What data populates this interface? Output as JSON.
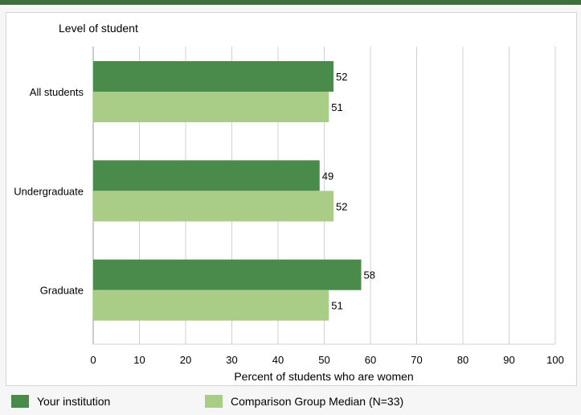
{
  "chart_data": {
    "type": "bar",
    "orientation": "horizontal",
    "categories": [
      "All students",
      "Undergraduate",
      "Graduate"
    ],
    "series": [
      {
        "name": "Your institution",
        "values": [
          52,
          49,
          58
        ],
        "color": "#4a8a4a"
      },
      {
        "name": "Comparison Group Median (N=33)",
        "values": [
          51,
          52,
          51
        ],
        "color": "#a9cc86"
      }
    ],
    "y_axis_title": "Level of student",
    "xlabel": "Percent of students who are women",
    "xlim": [
      0,
      100
    ],
    "xticks": [
      0,
      10,
      20,
      30,
      40,
      50,
      60,
      70,
      80,
      90,
      100
    ],
    "grid": true,
    "legend_position": "bottom"
  }
}
